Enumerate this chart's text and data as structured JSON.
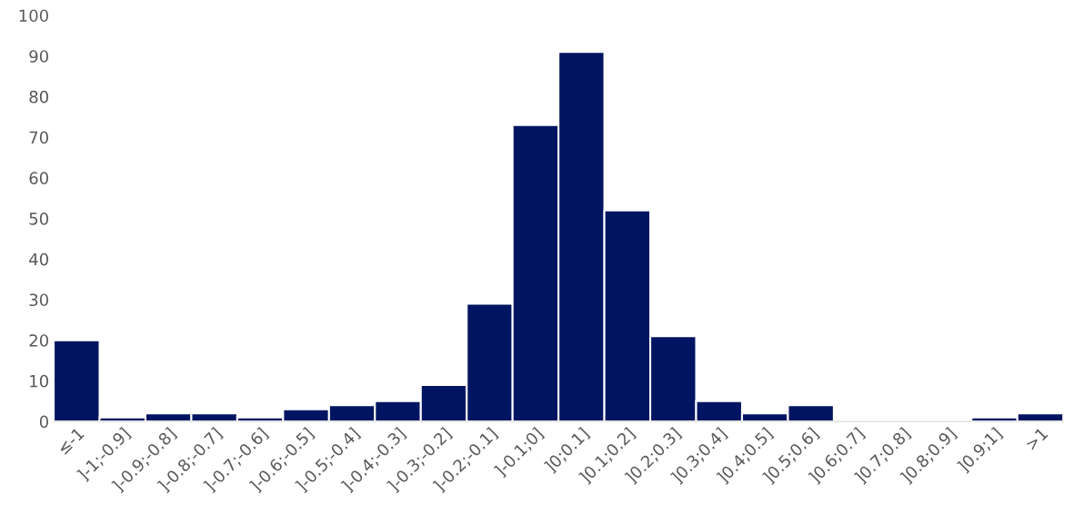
{
  "chart_data": {
    "type": "bar",
    "categories": [
      "≤-1",
      "]-1;-0.9]",
      "]-0.9;-0.8]",
      "]-0.8;-0.7]",
      "]-0.7;-0.6]",
      "]-0.6;-0.5]",
      "]-0.5;-0.4]",
      "]-0.4;-0.3]",
      "]-0.3;-0.2]",
      "]-0.2;-0.1]",
      "]-0.1;0]",
      "]0;0.1]",
      "]0.1;0.2]",
      "]0.2;0.3]",
      "]0.3;0.4]",
      "]0.4;0.5]",
      "]0.5;0.6]",
      "]0.6;0.7]",
      "]0.7;0.8]",
      "]0.8;0.9]",
      "]0.9;1]",
      ">1"
    ],
    "values": [
      20,
      1,
      2,
      2,
      1,
      3,
      4,
      5,
      9,
      29,
      73,
      91,
      52,
      21,
      5,
      2,
      4,
      0,
      0,
      0,
      1,
      2
    ],
    "color": "#001561",
    "ylim": [
      0,
      100
    ],
    "yticks": [
      0,
      10,
      20,
      30,
      40,
      50,
      60,
      70,
      80,
      90,
      100
    ],
    "grid": false
  }
}
